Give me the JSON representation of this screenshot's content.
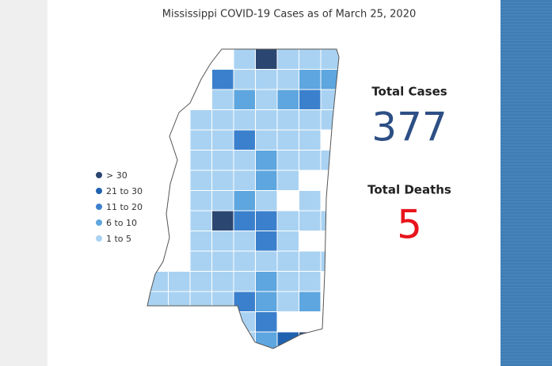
{
  "title": "Mississippi COVID-19 Cases as of March 25, 2020",
  "legend": {
    "items": [
      {
        "label": "> 30",
        "color": "#2b4670"
      },
      {
        "label": "21 to 30",
        "color": "#1f63b0"
      },
      {
        "label": "11 to 20",
        "color": "#3b80cc"
      },
      {
        "label": "6 to 10",
        "color": "#5da6df"
      },
      {
        "label": "1 to 5",
        "color": "#a9d2f2"
      }
    ]
  },
  "totals": {
    "cases": {
      "label": "Total Cases",
      "value": 377,
      "color": "#2d4f85"
    },
    "deaths": {
      "label": "Total Deaths",
      "value": 5,
      "color": "#e8141b"
    }
  }
}
